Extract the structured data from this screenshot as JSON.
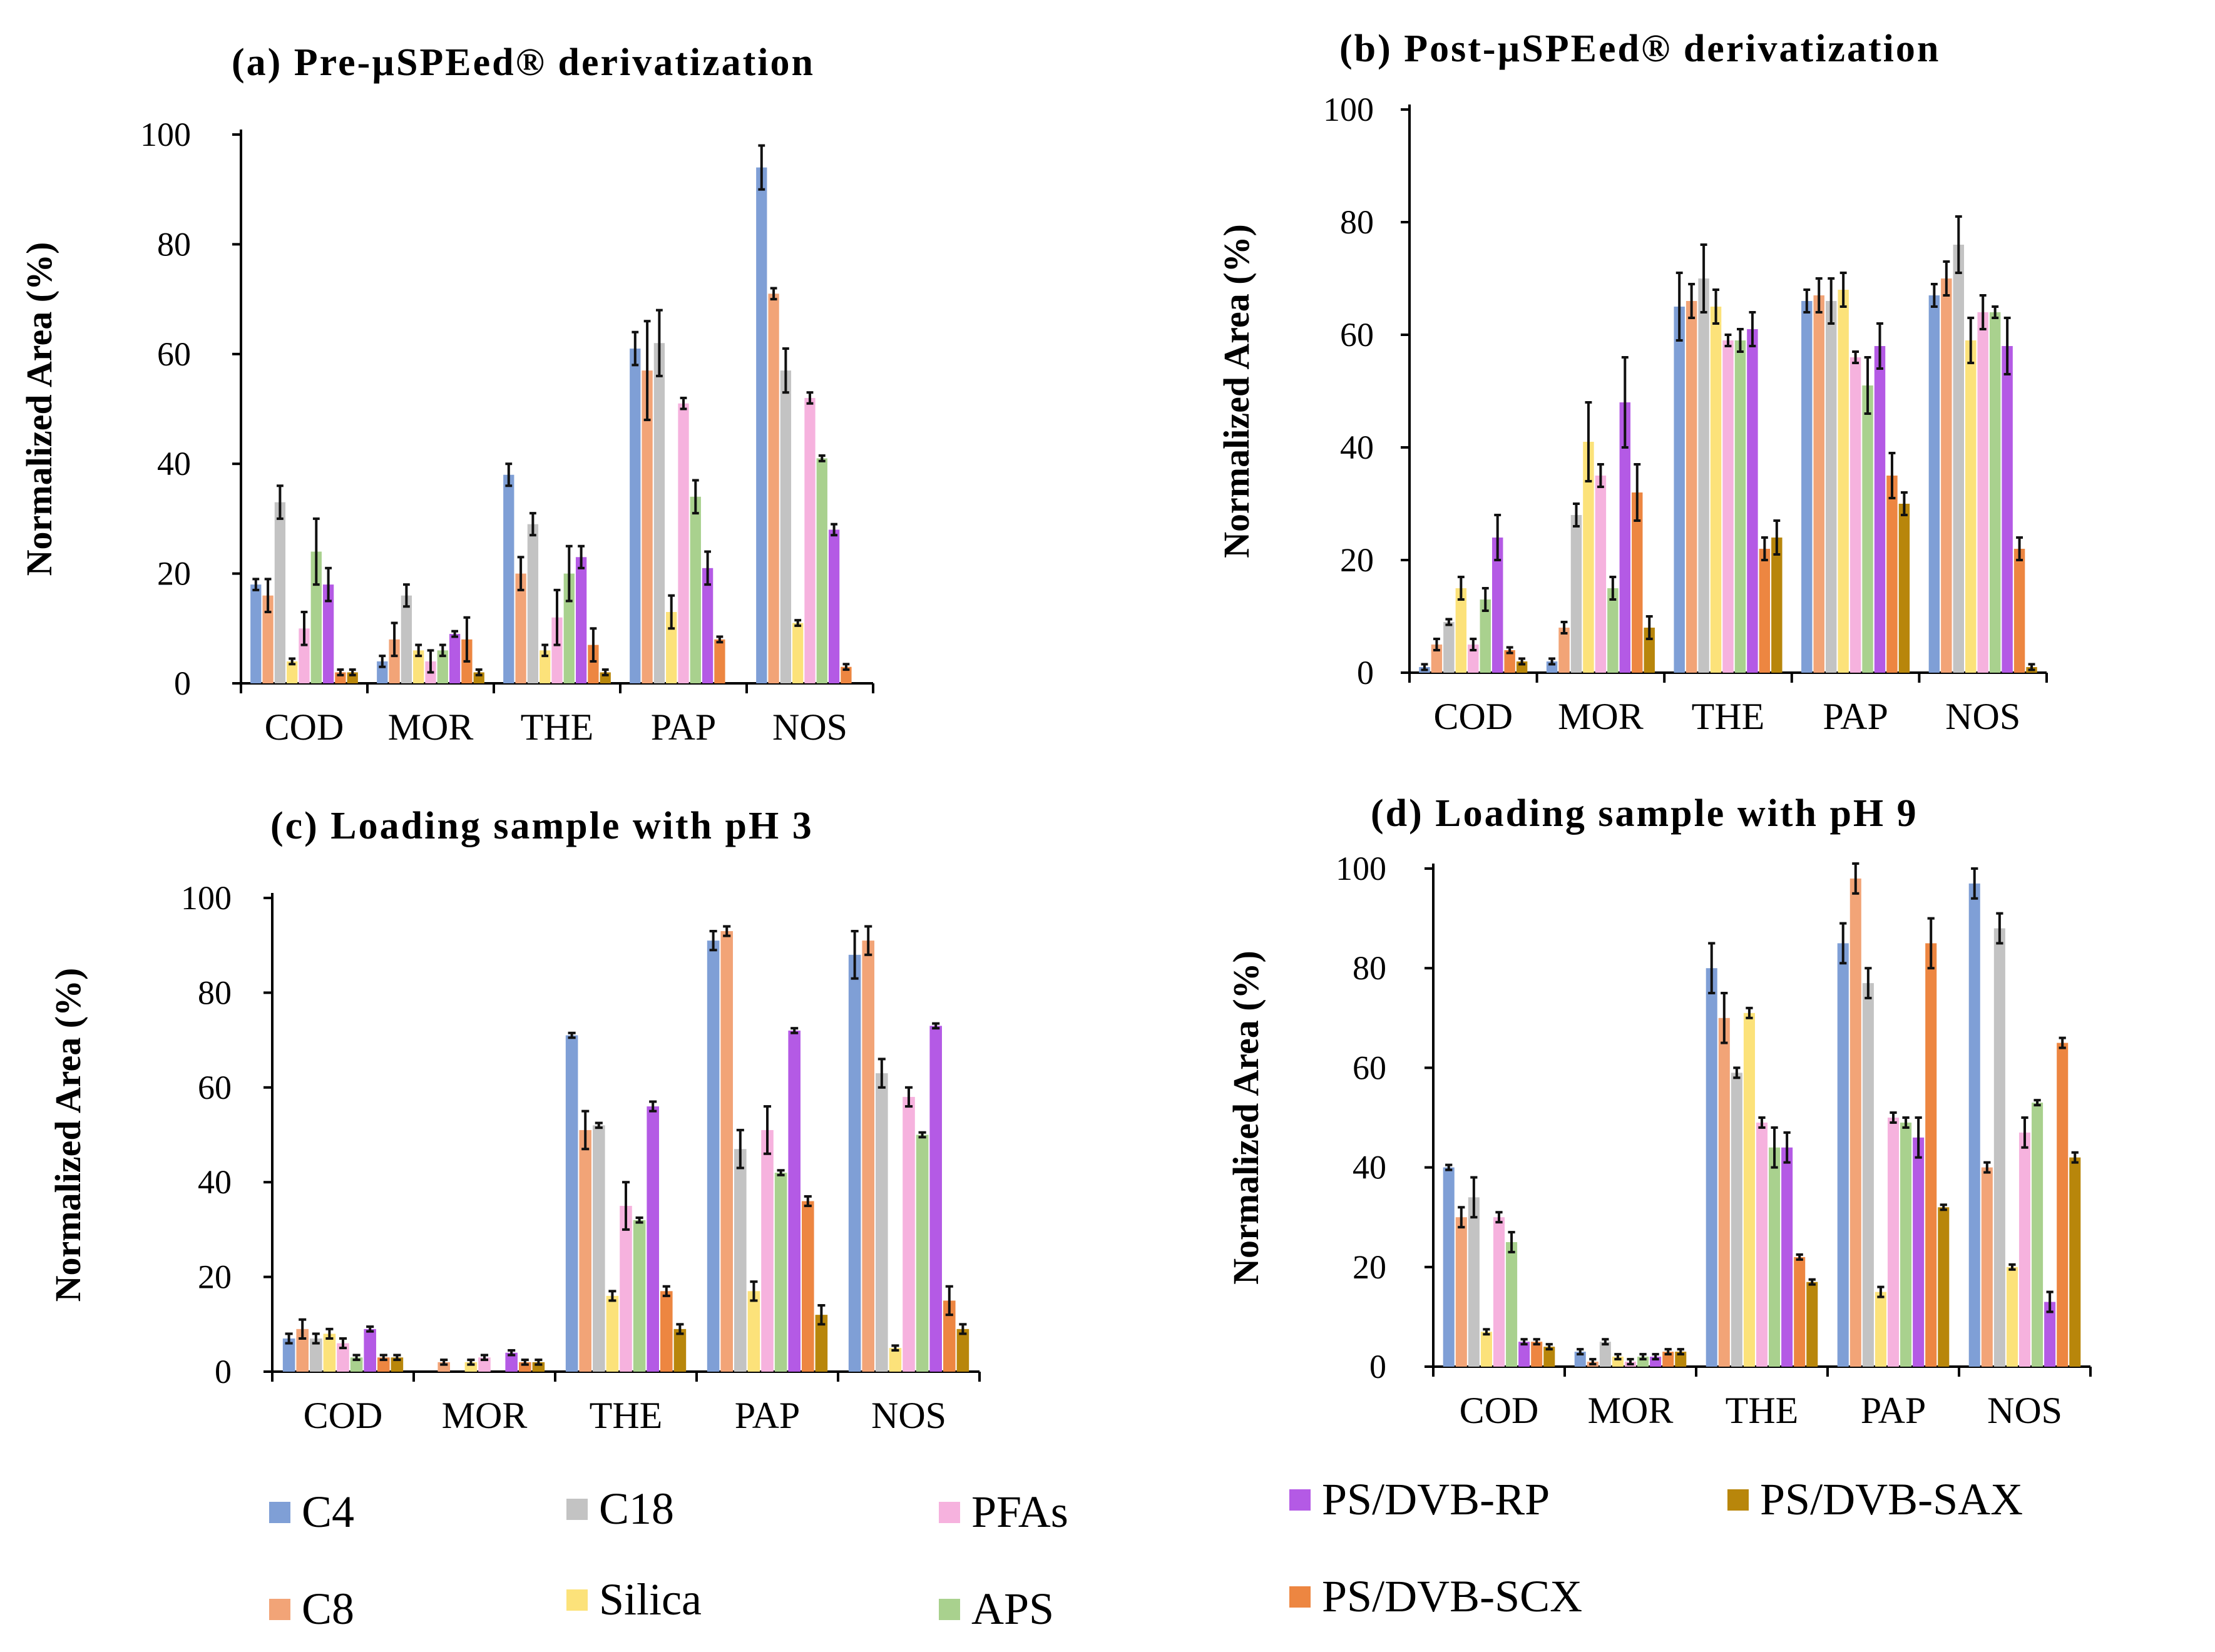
{
  "colors": {
    "C4": "#7f9fd6",
    "C8": "#f2a477",
    "C18": "#c3c3c3",
    "Silica": "#fce27a",
    "PFAs": "#f6b2de",
    "APS": "#a9d18e",
    "PS/DVB-RP": "#b45ae5",
    "PS/DVB-SCX": "#ed8641",
    "PS/DVB-SAX": "#b8860b"
  },
  "legend": {
    "items": [
      {
        "key": "C4",
        "label": "C4"
      },
      {
        "key": "C8",
        "label": "C8"
      },
      {
        "key": "C18",
        "label": "C18"
      },
      {
        "key": "Silica",
        "label": "Silica"
      },
      {
        "key": "PFAs",
        "label": "PFAs"
      },
      {
        "key": "APS",
        "label": "APS"
      },
      {
        "key": "PS/DVB-RP",
        "label": "PS/DVB-RP"
      },
      {
        "key": "PS/DVB-SCX",
        "label": "PS/DVB-SCX"
      },
      {
        "key": "PS/DVB-SAX",
        "label": "PS/DVB-SAX"
      }
    ]
  },
  "chart_data": [
    {
      "id": "a",
      "type": "bar",
      "title": "(a) Pre-µSPEed® derivatization",
      "ylabel": "Normalized Area (%)",
      "ylim": [
        0,
        100
      ],
      "yticks": [
        0,
        20,
        40,
        60,
        80,
        100
      ],
      "categories": [
        "COD",
        "MOR",
        "THE",
        "PAP",
        "NOS"
      ],
      "series": [
        {
          "name": "C4",
          "values": [
            18,
            4,
            38,
            61,
            94
          ],
          "errors": [
            1,
            1,
            2,
            3,
            4
          ]
        },
        {
          "name": "C8",
          "values": [
            16,
            8,
            20,
            57,
            71
          ],
          "errors": [
            3,
            3,
            3,
            9,
            1
          ]
        },
        {
          "name": "C18",
          "values": [
            33,
            16,
            29,
            62,
            57
          ],
          "errors": [
            3,
            2,
            2,
            6,
            4
          ]
        },
        {
          "name": "Silica",
          "values": [
            4,
            6,
            6,
            13,
            11
          ],
          "errors": [
            0.5,
            1,
            1,
            3,
            0.5
          ]
        },
        {
          "name": "PFAs",
          "values": [
            10,
            4,
            12,
            51,
            52
          ],
          "errors": [
            3,
            2,
            5,
            1,
            1
          ]
        },
        {
          "name": "APS",
          "values": [
            24,
            6,
            20,
            34,
            41
          ],
          "errors": [
            6,
            1,
            5,
            3,
            0.5
          ]
        },
        {
          "name": "PS/DVB-RP",
          "values": [
            18,
            9,
            23,
            21,
            28
          ],
          "errors": [
            3,
            0.5,
            2,
            3,
            1
          ]
        },
        {
          "name": "PS/DVB-SCX",
          "values": [
            2,
            8,
            7,
            8,
            3
          ],
          "errors": [
            0.5,
            4,
            3,
            0.5,
            0.5
          ]
        },
        {
          "name": "PS/DVB-SAX",
          "values": [
            2,
            2,
            2,
            0,
            0
          ],
          "errors": [
            0.5,
            0.5,
            0.5,
            0,
            0
          ]
        }
      ]
    },
    {
      "id": "b",
      "type": "bar",
      "title": "(b) Post-µSPEed® derivatization",
      "ylabel": "Normalized Area (%)",
      "ylim": [
        0,
        100
      ],
      "yticks": [
        0,
        20,
        40,
        60,
        80,
        100
      ],
      "categories": [
        "COD",
        "MOR",
        "THE",
        "PAP",
        "NOS"
      ],
      "series": [
        {
          "name": "C4",
          "values": [
            1,
            2,
            65,
            66,
            67
          ],
          "errors": [
            0.5,
            0.5,
            6,
            2,
            2
          ]
        },
        {
          "name": "C8",
          "values": [
            5,
            8,
            66,
            67,
            70
          ],
          "errors": [
            1,
            1,
            3,
            3,
            3
          ]
        },
        {
          "name": "C18",
          "values": [
            9,
            28,
            70,
            66,
            76
          ],
          "errors": [
            0.5,
            2,
            6,
            4,
            5
          ]
        },
        {
          "name": "Silica",
          "values": [
            15,
            41,
            65,
            68,
            59
          ],
          "errors": [
            2,
            7,
            3,
            3,
            4
          ]
        },
        {
          "name": "PFAs",
          "values": [
            5,
            35,
            59,
            56,
            64
          ],
          "errors": [
            1,
            2,
            1,
            1,
            3
          ]
        },
        {
          "name": "APS",
          "values": [
            13,
            15,
            59,
            51,
            64
          ],
          "errors": [
            2,
            2,
            2,
            5,
            1
          ]
        },
        {
          "name": "PS/DVB-RP",
          "values": [
            24,
            48,
            61,
            58,
            58
          ],
          "errors": [
            4,
            8,
            3,
            4,
            5
          ]
        },
        {
          "name": "PS/DVB-SCX",
          "values": [
            4,
            32,
            22,
            35,
            22
          ],
          "errors": [
            0.5,
            5,
            2,
            4,
            2
          ]
        },
        {
          "name": "PS/DVB-SAX",
          "values": [
            2,
            8,
            24,
            30,
            1
          ],
          "errors": [
            0.5,
            2,
            3,
            2,
            0.5
          ]
        }
      ]
    },
    {
      "id": "c",
      "type": "bar",
      "title": "(c) Loading sample with pH 3",
      "ylabel": "Normalized Area (%)",
      "ylim": [
        0,
        100
      ],
      "yticks": [
        0,
        20,
        40,
        60,
        80,
        100
      ],
      "categories": [
        "COD",
        "MOR",
        "THE",
        "PAP",
        "NOS"
      ],
      "series": [
        {
          "name": "C4",
          "values": [
            7,
            0,
            71,
            91,
            88
          ],
          "errors": [
            1,
            0,
            0.5,
            2,
            5
          ]
        },
        {
          "name": "C8",
          "values": [
            9,
            2,
            51,
            93,
            91
          ],
          "errors": [
            2,
            0.5,
            4,
            1,
            3
          ]
        },
        {
          "name": "C18",
          "values": [
            7,
            0,
            52,
            47,
            63
          ],
          "errors": [
            1,
            0,
            0.5,
            4,
            3
          ]
        },
        {
          "name": "Silica",
          "values": [
            8,
            2,
            16,
            17,
            5
          ],
          "errors": [
            1,
            0.5,
            1,
            2,
            0.5
          ]
        },
        {
          "name": "PFAs",
          "values": [
            6,
            3,
            35,
            51,
            58
          ],
          "errors": [
            1,
            0.5,
            5,
            5,
            2
          ]
        },
        {
          "name": "APS",
          "values": [
            3,
            0,
            32,
            42,
            50
          ],
          "errors": [
            0.5,
            0,
            0.5,
            0.5,
            0.5
          ]
        },
        {
          "name": "PS/DVB-RP",
          "values": [
            9,
            4,
            56,
            72,
            73
          ],
          "errors": [
            0.5,
            0.5,
            1,
            0.5,
            0.5
          ]
        },
        {
          "name": "PS/DVB-SCX",
          "values": [
            3,
            2,
            17,
            36,
            15
          ],
          "errors": [
            0.5,
            0.5,
            1,
            1,
            3
          ]
        },
        {
          "name": "PS/DVB-SAX",
          "values": [
            3,
            2,
            9,
            12,
            9
          ],
          "errors": [
            0.5,
            0.5,
            1,
            2,
            1
          ]
        }
      ]
    },
    {
      "id": "d",
      "type": "bar",
      "title": "(d) Loading sample with pH 9",
      "ylabel": "Normalized Area (%)",
      "ylim": [
        0,
        100
      ],
      "yticks": [
        0,
        20,
        40,
        60,
        80,
        100
      ],
      "categories": [
        "COD",
        "MOR",
        "THE",
        "PAP",
        "NOS"
      ],
      "series": [
        {
          "name": "C4",
          "values": [
            40,
            3,
            80,
            85,
            97
          ],
          "errors": [
            0.5,
            0.5,
            5,
            4,
            3
          ]
        },
        {
          "name": "C8",
          "values": [
            30,
            1,
            70,
            98,
            40
          ],
          "errors": [
            2,
            0.5,
            5,
            3,
            1
          ]
        },
        {
          "name": "C18",
          "values": [
            34,
            5,
            59,
            77,
            88
          ],
          "errors": [
            4,
            0.5,
            1,
            3,
            3
          ]
        },
        {
          "name": "Silica",
          "values": [
            7,
            2,
            71,
            15,
            20
          ],
          "errors": [
            0.5,
            0.5,
            1,
            1,
            0.5
          ]
        },
        {
          "name": "PFAs",
          "values": [
            30,
            1,
            49,
            50,
            47
          ],
          "errors": [
            1,
            0.5,
            1,
            1,
            3
          ]
        },
        {
          "name": "APS",
          "values": [
            25,
            2,
            44,
            49,
            53
          ],
          "errors": [
            2,
            0.5,
            4,
            1,
            0.5
          ]
        },
        {
          "name": "PS/DVB-RP",
          "values": [
            5,
            2,
            44,
            46,
            13
          ],
          "errors": [
            0.5,
            0.5,
            3,
            4,
            2
          ]
        },
        {
          "name": "PS/DVB-SCX",
          "values": [
            5,
            3,
            22,
            85,
            65
          ],
          "errors": [
            0.5,
            0.5,
            0.5,
            5,
            1
          ]
        },
        {
          "name": "PS/DVB-SAX",
          "values": [
            4,
            3,
            17,
            32,
            42
          ],
          "errors": [
            0.5,
            0.5,
            0.5,
            0.5,
            1
          ]
        }
      ]
    }
  ]
}
